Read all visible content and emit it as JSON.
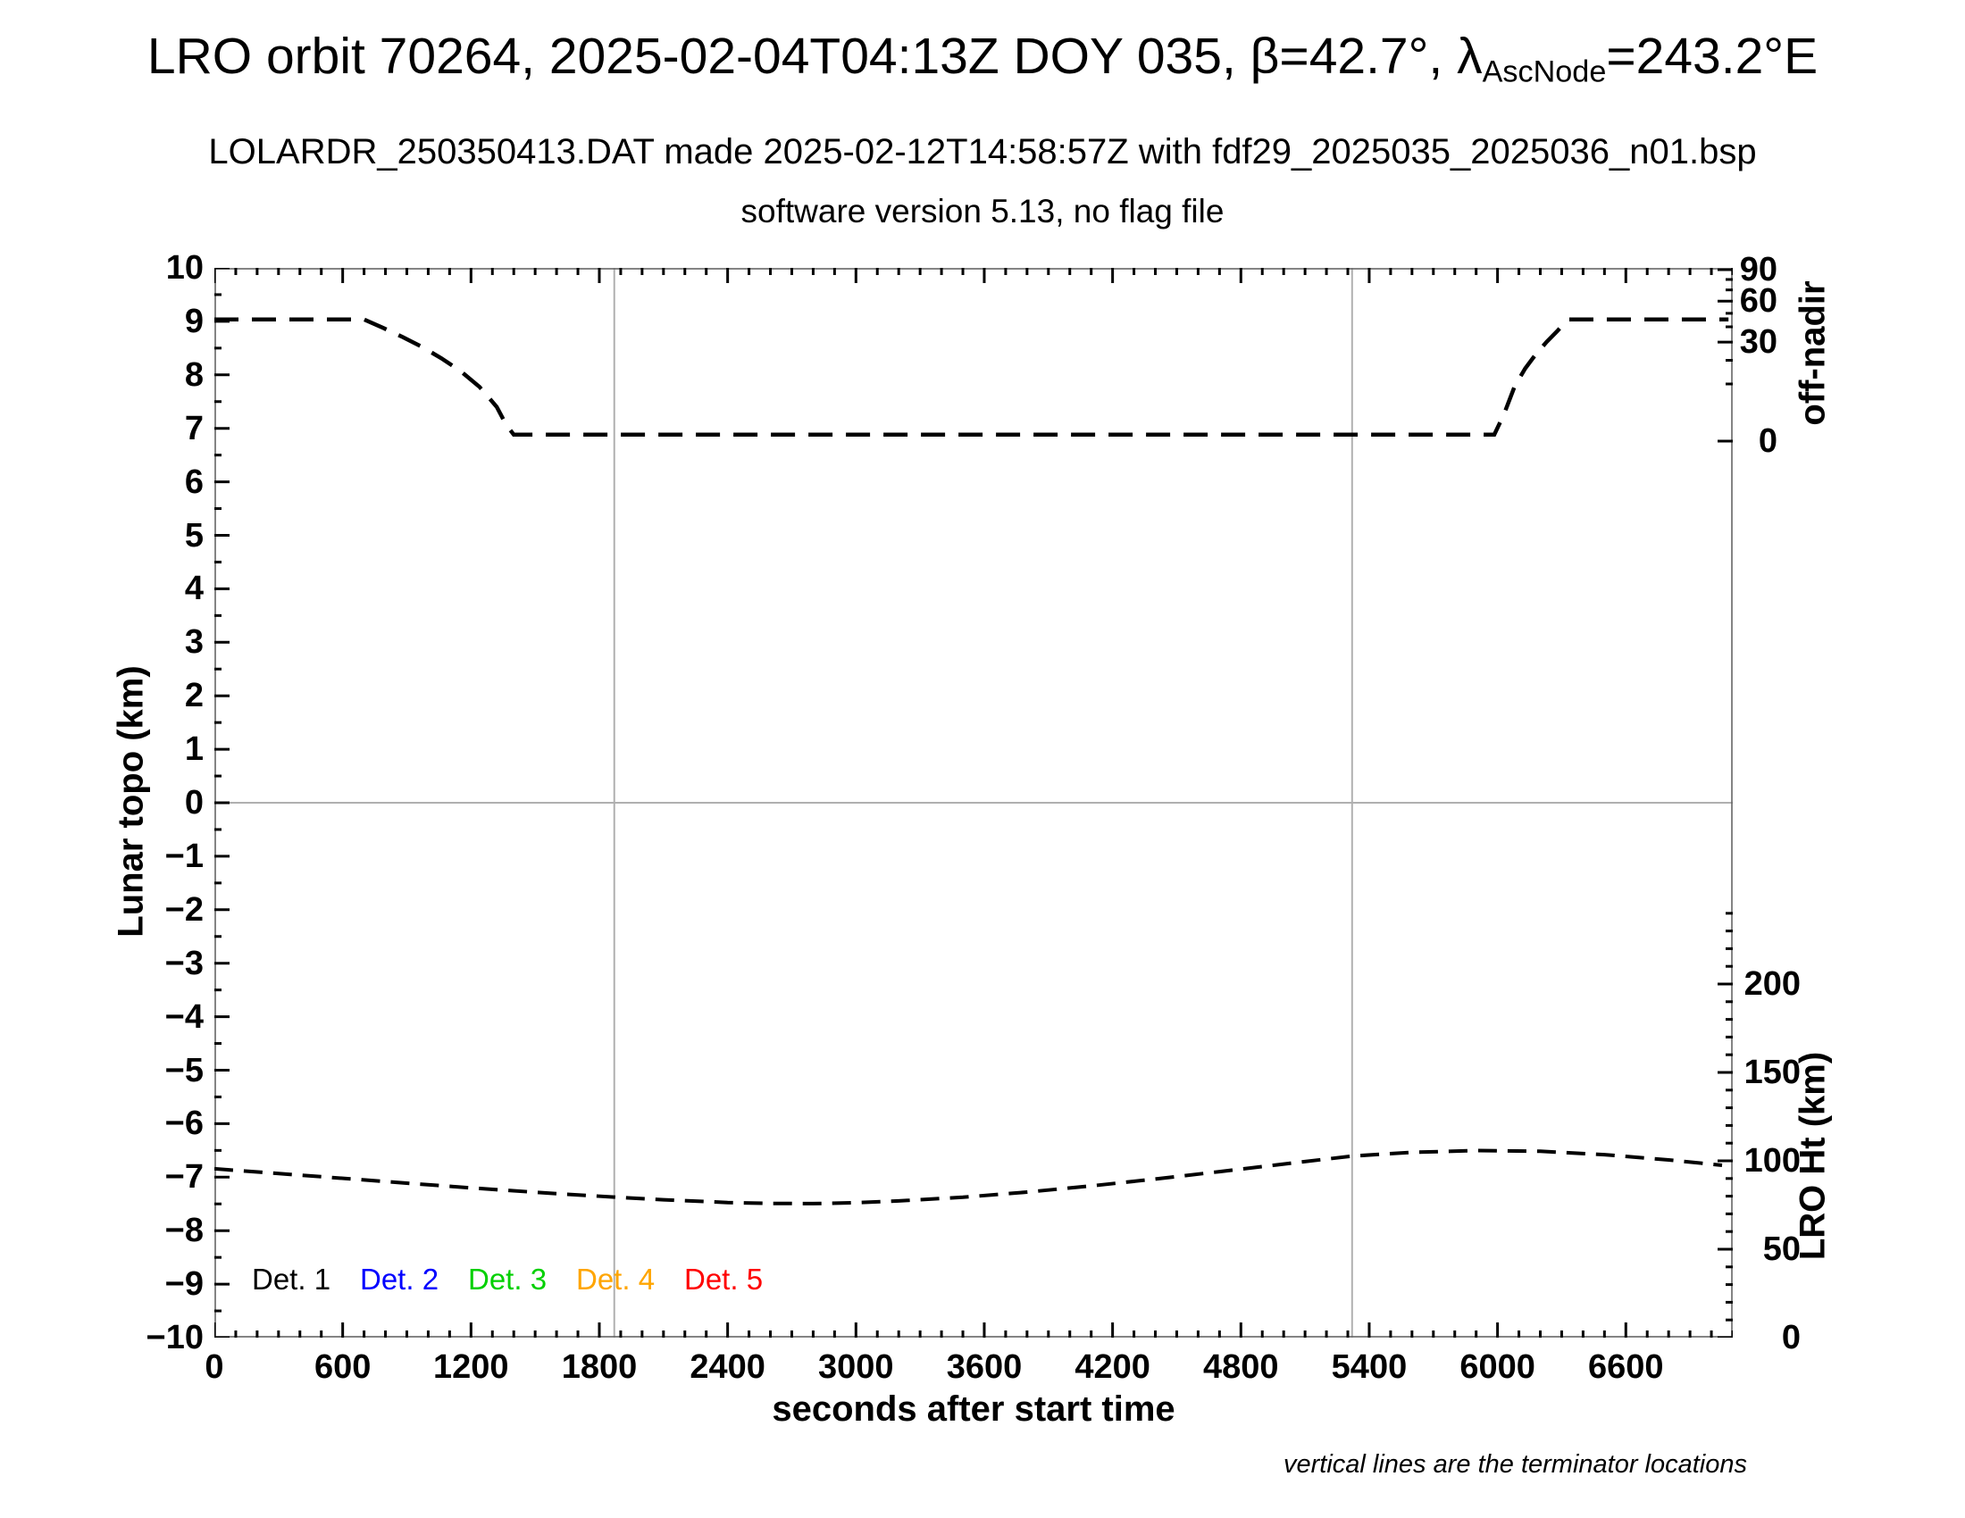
{
  "header": {
    "title_prefix": "LRO orbit 70264, 2025-02-04T04:13Z DOY 035, β=42.7°, λ",
    "title_subscript": "AscNode",
    "title_suffix": "=243.2°E",
    "subtitle": "LOLARDR_250350413.DAT made 2025-02-12T14:58:57Z with fdf29_2025035_2025036_n01.bsp",
    "subtitle2": "software version 5.13, no flag file"
  },
  "footnote": "vertical lines are the terminator locations",
  "chart_data": {
    "type": "line",
    "title": "LRO orbit 70264, 2025-02-04T04:13Z DOY 035, β=42.7°, λAscNode=243.2°E",
    "x_axis": {
      "label": "seconds after start time",
      "min": 0,
      "max": 7100,
      "major_tick": 600,
      "minor_tick": 100,
      "last_labeled_tick": 6600,
      "tick_labels": [
        0,
        600,
        1200,
        1800,
        2400,
        3000,
        3600,
        4200,
        4800,
        5400,
        6000,
        6600
      ]
    },
    "y_left": {
      "label": "Lunar topo (km)",
      "min": -10,
      "max": 10,
      "major_tick": 1,
      "minor_tick": 0.5,
      "tick_labels": [
        10,
        9,
        8,
        7,
        6,
        5,
        4,
        3,
        2,
        1,
        0,
        -1,
        -2,
        -3,
        -4,
        -5,
        -6,
        -7,
        -8,
        -9,
        -10
      ]
    },
    "y_right_top": {
      "label": "off-nadir",
      "units": "degrees",
      "scale": "sqrt",
      "min": 0,
      "max": 90,
      "minor_tick": 10,
      "labeled_ticks": [
        90,
        60,
        30,
        0
      ]
    },
    "y_right_bottom": {
      "label": "LRO Ht (km)",
      "min": 0,
      "tick_max": 240,
      "major_tick": 50,
      "minor_tick": 10,
      "labeled_ticks": [
        200,
        150,
        100,
        50,
        0
      ]
    },
    "zero_line_topo": 0,
    "terminators_s": [
      1870,
      5320
    ],
    "legend": [
      {
        "label": "Det. 1",
        "color": "#000000"
      },
      {
        "label": "Det. 2",
        "color": "#0000ff"
      },
      {
        "label": "Det. 3",
        "color": "#00d000"
      },
      {
        "label": "Det. 4",
        "color": "#ffa500"
      },
      {
        "label": "Det. 5",
        "color": "#ff0000"
      }
    ],
    "series": [
      {
        "name": "off-nadir angle",
        "axis": "y_right_top",
        "style": "dashed",
        "color": "#000000",
        "points": [
          [
            0,
            45.3
          ],
          [
            350,
            45.3
          ],
          [
            700,
            45.3
          ],
          [
            790,
            39.2
          ],
          [
            880,
            33.2
          ],
          [
            970,
            27.2
          ],
          [
            1060,
            21.1
          ],
          [
            1150,
            15.1
          ],
          [
            1240,
            9.0
          ],
          [
            1320,
            3.6
          ],
          [
            1365,
            0.8
          ],
          [
            1400,
            0.13
          ],
          [
            2500,
            0.13
          ],
          [
            4000,
            0.13
          ],
          [
            5500,
            0.13
          ],
          [
            5985,
            0.13
          ],
          [
            6030,
            2.2
          ],
          [
            6080,
            9.2
          ],
          [
            6130,
            16.2
          ],
          [
            6180,
            23.2
          ],
          [
            6230,
            30.2
          ],
          [
            6280,
            37.2
          ],
          [
            6320,
            44.0
          ],
          [
            6335,
            45.3
          ],
          [
            6700,
            45.3
          ],
          [
            7080,
            45.3
          ]
        ]
      },
      {
        "name": "LRO height",
        "axis": "y_right_bottom",
        "style": "dashed",
        "color": "#000000",
        "points": [
          [
            0,
            95.5
          ],
          [
            400,
            91.9
          ],
          [
            800,
            88.3
          ],
          [
            1200,
            84.7
          ],
          [
            1600,
            81.4
          ],
          [
            1870,
            79.5
          ],
          [
            2100,
            78.0
          ],
          [
            2400,
            76.4
          ],
          [
            2600,
            75.9
          ],
          [
            2800,
            75.8
          ],
          [
            3000,
            76.3
          ],
          [
            3200,
            77.3
          ],
          [
            3500,
            79.4
          ],
          [
            3800,
            82.3
          ],
          [
            4100,
            85.8
          ],
          [
            4400,
            89.7
          ],
          [
            4700,
            93.9
          ],
          [
            5000,
            98.2
          ],
          [
            5320,
            102.7
          ],
          [
            5600,
            104.8
          ],
          [
            5900,
            105.8
          ],
          [
            6200,
            105.4
          ],
          [
            6500,
            103.5
          ],
          [
            6800,
            100.5
          ],
          [
            7050,
            97.5
          ]
        ]
      }
    ]
  }
}
